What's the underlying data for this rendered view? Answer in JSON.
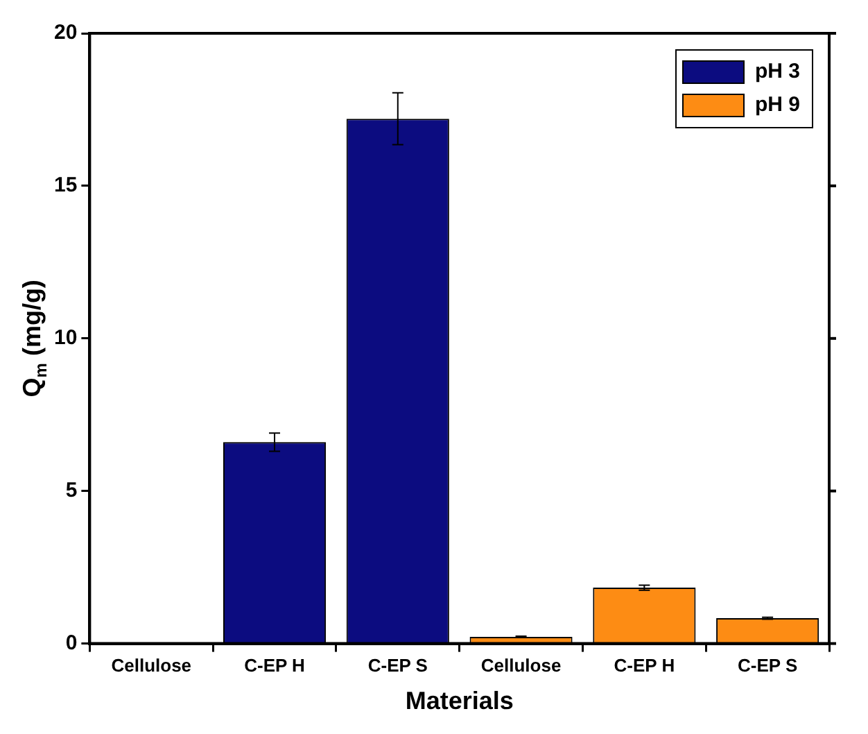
{
  "chart_data": {
    "type": "bar",
    "xlabel": "Materials",
    "ylabel": "Q$_{m}$ (mg/g)",
    "categories": [
      "Cellulose",
      "C-EP H",
      "C-EP S",
      "Cellulose",
      "C-EP H",
      "C-EP S"
    ],
    "series": [
      {
        "name": "pH 3",
        "color": "#0c0c80",
        "values": [
          0,
          6.6,
          17.2,
          null,
          null,
          null
        ],
        "errors": [
          null,
          0.3,
          0.85,
          null,
          null,
          null
        ]
      },
      {
        "name": "pH 9",
        "color": "#fd8c14",
        "values": [
          null,
          null,
          null,
          0.22,
          1.83,
          0.83
        ],
        "errors": [
          null,
          null,
          null,
          0.02,
          0.08,
          0.03
        ]
      }
    ],
    "ylim": [
      0,
      20
    ],
    "yticks": [
      0,
      5,
      10,
      15,
      20
    ],
    "legend": "top right"
  }
}
